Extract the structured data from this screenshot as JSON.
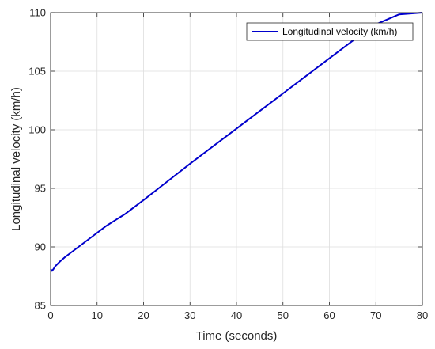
{
  "chart_data": {
    "type": "line",
    "title": "",
    "xlabel": "Time (seconds)",
    "ylabel": "Longitudinal velocity (km/h)",
    "xlim": [
      0,
      80
    ],
    "ylim": [
      85,
      110
    ],
    "xticks": [
      0,
      10,
      20,
      30,
      40,
      50,
      60,
      70,
      80
    ],
    "yticks": [
      85,
      90,
      95,
      100,
      105,
      110
    ],
    "xtick_labels": [
      "0",
      "10",
      "20",
      "30",
      "40",
      "50",
      "60",
      "70",
      "80"
    ],
    "ytick_labels": [
      "85",
      "90",
      "95",
      "100",
      "105",
      "110"
    ],
    "grid": true,
    "legend_position": "top-right",
    "series": [
      {
        "name": "Longitudinal velocity (km/h)",
        "color": "#0000cc",
        "x": [
          0,
          0.3,
          0.6,
          1,
          2,
          3,
          4,
          6,
          8,
          10,
          12,
          14,
          15,
          16,
          18,
          20,
          25,
          30,
          35,
          40,
          45,
          50,
          55,
          60,
          65,
          70,
          75,
          80
        ],
        "y": [
          88.1,
          87.95,
          88.1,
          88.35,
          88.75,
          89.1,
          89.4,
          90.0,
          90.6,
          91.2,
          91.8,
          92.3,
          92.55,
          92.8,
          93.4,
          94.0,
          95.55,
          97.1,
          98.6,
          100.1,
          101.6,
          103.1,
          104.6,
          106.1,
          107.6,
          109.0,
          109.85,
          110.0
        ]
      }
    ]
  }
}
